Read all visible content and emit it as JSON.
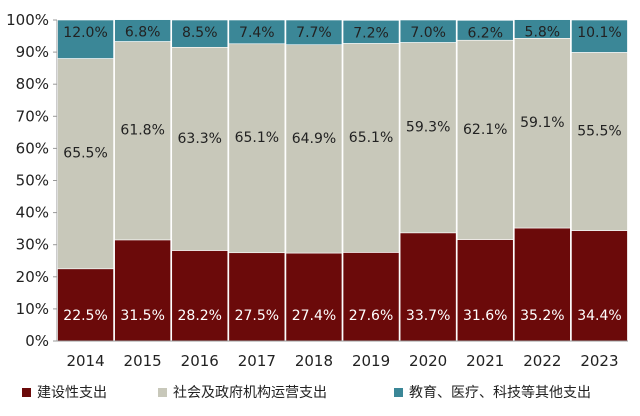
{
  "chart_data": {
    "type": "bar",
    "stacked": true,
    "categories": [
      "2014",
      "2015",
      "2016",
      "2017",
      "2018",
      "2019",
      "2020",
      "2021",
      "2022",
      "2023"
    ],
    "series": [
      {
        "name": "建设性支出",
        "color": "#6b0a0a",
        "label_color": "#ffffff",
        "values": [
          22.5,
          31.5,
          28.2,
          27.5,
          27.4,
          27.6,
          33.7,
          31.6,
          35.2,
          34.4
        ]
      },
      {
        "name": "社会及政府机构运营支出",
        "color": "#c8c8ba",
        "label_color": "#222222",
        "values": [
          65.5,
          61.8,
          63.3,
          65.1,
          64.9,
          65.1,
          59.3,
          62.1,
          59.1,
          55.5
        ]
      },
      {
        "name": "教育、医疗、科技等其他支出",
        "color": "#3b8797",
        "label_color": "#222222",
        "values": [
          12.0,
          6.8,
          8.5,
          7.4,
          7.7,
          7.2,
          7.0,
          6.2,
          5.8,
          10.1
        ]
      }
    ],
    "ylim": [
      0,
      100
    ],
    "yticks": [
      "0%",
      "10%",
      "20%",
      "30%",
      "40%",
      "50%",
      "60%",
      "70%",
      "80%",
      "90%",
      "100%"
    ],
    "value_suffix": "%",
    "grid": false,
    "legend_position": "bottom",
    "title": "",
    "xlabel": "",
    "ylabel": ""
  }
}
